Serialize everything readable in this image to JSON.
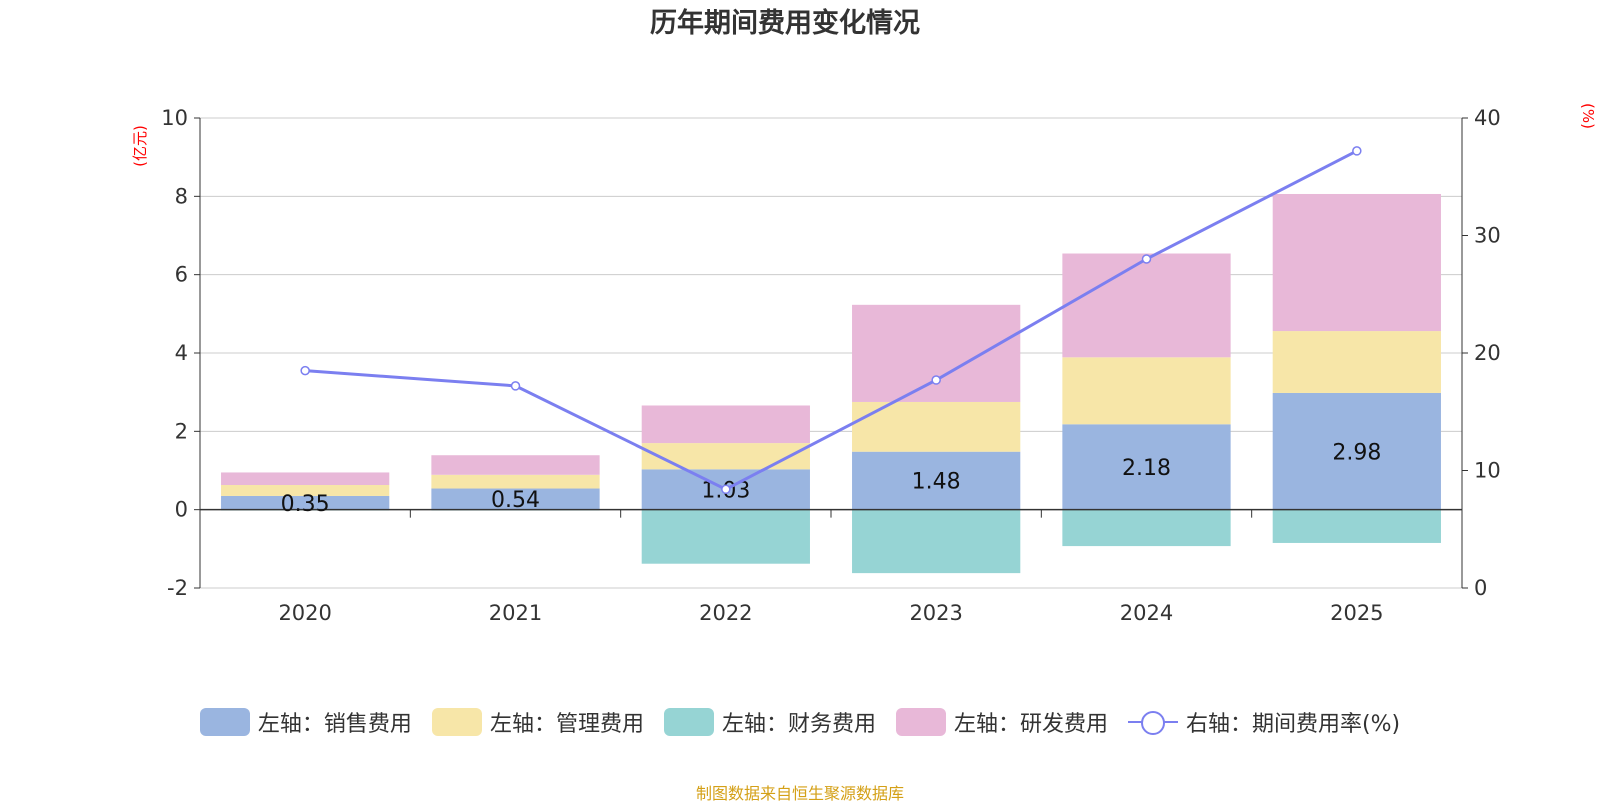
{
  "chart_data": {
    "type": "bar",
    "title": "历年期间费用变化情况",
    "categories": [
      "2020",
      "2021",
      "2022",
      "2023",
      "2024",
      "2025"
    ],
    "left_axis": {
      "unit": "(亿元)",
      "ylim": [
        -2,
        10
      ],
      "ticks": [
        "10",
        "8",
        "6",
        "4",
        "2",
        "0",
        "-2"
      ]
    },
    "right_axis": {
      "unit": "(%)",
      "ylim": [
        0,
        40
      ],
      "ticks": [
        "40",
        "30",
        "20",
        "10",
        "0"
      ]
    },
    "series": [
      {
        "name": "左轴：销售费用",
        "type": "bar",
        "stack": "pos",
        "color": "#9ab5e0",
        "values": [
          0.35,
          0.54,
          1.03,
          1.48,
          2.18,
          2.98
        ]
      },
      {
        "name": "左轴：管理费用",
        "type": "bar",
        "stack": "pos",
        "color": "#f7e6a8",
        "values": [
          0.28,
          0.35,
          0.67,
          1.27,
          1.71,
          1.58
        ]
      },
      {
        "name": "左轴：财务费用",
        "type": "bar",
        "stack": "neg",
        "color": "#96d4d4",
        "values": [
          -0.02,
          -0.02,
          -1.38,
          -1.62,
          -0.93,
          -0.85
        ]
      },
      {
        "name": "左轴：研发费用",
        "type": "bar",
        "stack": "pos",
        "color": "#e8b8d8",
        "values": [
          0.32,
          0.5,
          0.96,
          2.48,
          2.65,
          3.5
        ]
      },
      {
        "name": "右轴：期间费用率(%)",
        "type": "line",
        "axis": "right",
        "color": "#7b7ff0",
        "values": [
          18.5,
          17.2,
          8.4,
          17.7,
          28.0,
          37.2
        ]
      }
    ],
    "data_labels": [
      "0.35",
      "0.54",
      "1.03",
      "1.48",
      "2.18",
      "2.98"
    ]
  },
  "source": "制图数据来自恒生聚源数据库"
}
